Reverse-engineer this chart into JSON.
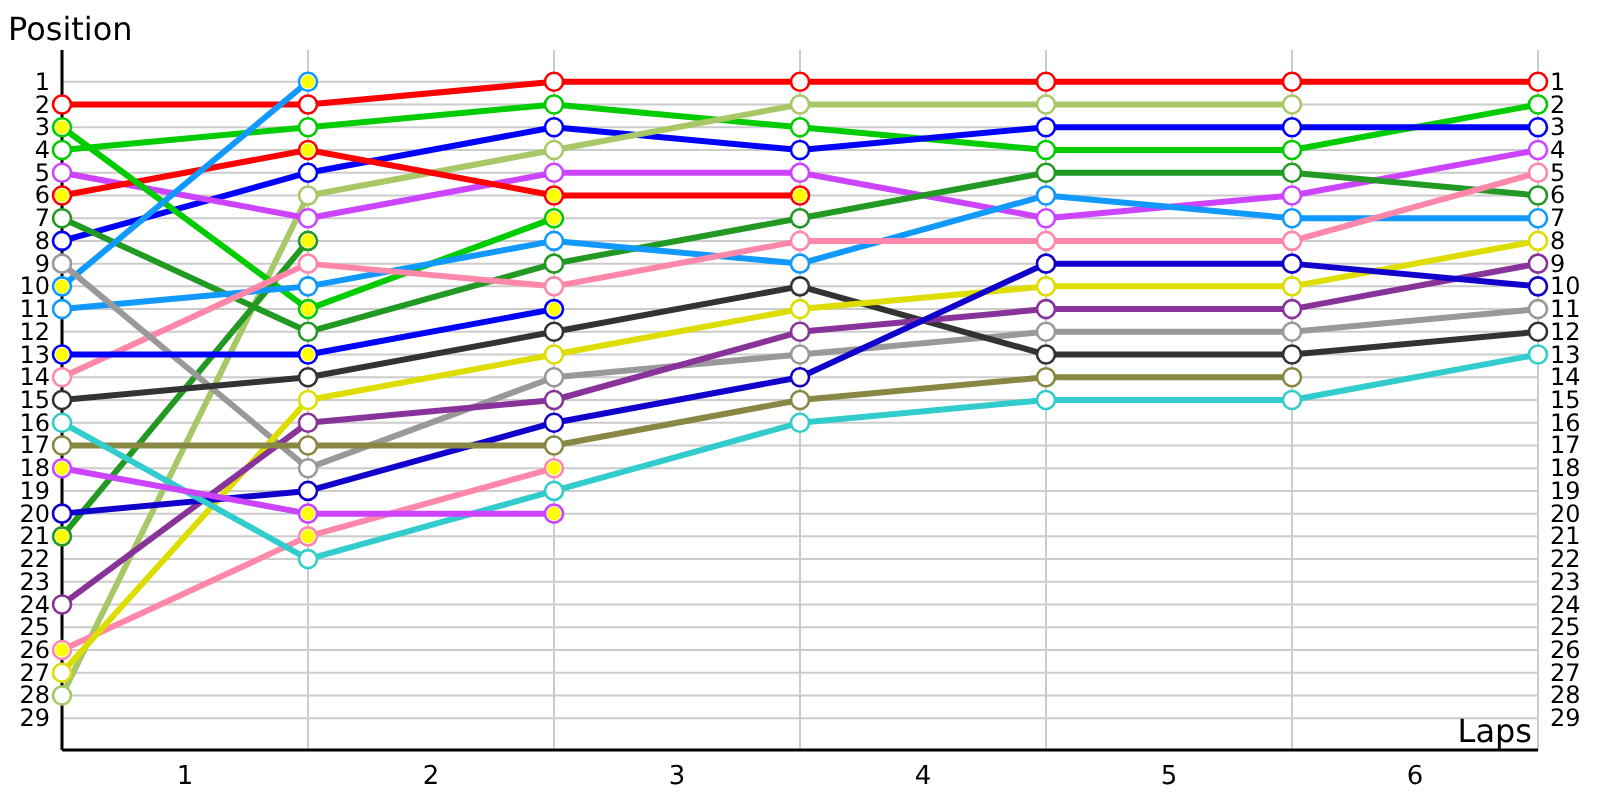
{
  "chart_data": {
    "type": "line",
    "xlabel": "Laps",
    "ylabel": "Position",
    "x": [
      0,
      1,
      2,
      3,
      4,
      5,
      6
    ],
    "xlim": [
      0,
      6
    ],
    "xticks": [
      {
        "value": 0,
        "label": null
      },
      {
        "value": 0.5,
        "label": "1"
      },
      {
        "value": 1,
        "label": null
      },
      {
        "value": 1.5,
        "label": "2"
      },
      {
        "value": 2,
        "label": null
      },
      {
        "value": 2.5,
        "label": "3"
      },
      {
        "value": 3,
        "label": null
      },
      {
        "value": 3.5,
        "label": "4"
      },
      {
        "value": 4,
        "label": null
      },
      {
        "value": 4.5,
        "label": "5"
      },
      {
        "value": 5,
        "label": null
      },
      {
        "value": 5.5,
        "label": "6"
      },
      {
        "value": 6,
        "label": null
      }
    ],
    "ylim": [
      30.4,
      -0.4
    ],
    "yticks": [
      1,
      2,
      3,
      4,
      5,
      6,
      7,
      8,
      9,
      10,
      11,
      12,
      13,
      14,
      15,
      16,
      17,
      18,
      19,
      20,
      21,
      22,
      23,
      24,
      25,
      26,
      27,
      28,
      29
    ],
    "y2lim": [
      30.4,
      -0.4
    ],
    "y2ticks": [
      1,
      2,
      3,
      4,
      5,
      6,
      7,
      8,
      9,
      10,
      11,
      12,
      13,
      14,
      15,
      16,
      17,
      18,
      19,
      20,
      21,
      22,
      23,
      24,
      25,
      26,
      27,
      28,
      29
    ],
    "grid": true,
    "marker": "circle",
    "line_style": "solid",
    "series": [
      {
        "color": "#ff0000",
        "values": [
          2,
          2,
          1,
          1,
          1,
          1,
          1
        ]
      },
      {
        "color": "#00cc00",
        "values": [
          4,
          3,
          2,
          3,
          4,
          4,
          2
        ]
      },
      {
        "color": "#0000ff",
        "values": [
          8,
          5,
          3,
          4,
          3,
          3,
          3
        ]
      },
      {
        "color": "#a8c868",
        "values": [
          28,
          6,
          4,
          2,
          2,
          2,
          null
        ]
      },
      {
        "color": "#cc44ff",
        "values": [
          5,
          7,
          5,
          5,
          7,
          6,
          4
        ]
      },
      {
        "color": "#ff0000",
        "values": [
          6,
          4,
          6,
          6,
          null,
          null,
          null
        ]
      },
      {
        "color": "#00cc00",
        "values": [
          3,
          11,
          7,
          null,
          null,
          null,
          null
        ]
      },
      {
        "color": "#229922",
        "values": [
          7,
          12,
          9,
          7,
          5,
          5,
          6
        ]
      },
      {
        "color": "#229922",
        "values": [
          21,
          8,
          null,
          null,
          null,
          null,
          null
        ]
      },
      {
        "color": "#1199ff",
        "values": [
          10,
          1,
          null,
          null,
          null,
          null,
          null
        ]
      },
      {
        "color": "#1199ff",
        "values": [
          11,
          10,
          8,
          9,
          6,
          7,
          7
        ]
      },
      {
        "color": "#ff88aa",
        "values": [
          14,
          9,
          10,
          8,
          8,
          8,
          5
        ]
      },
      {
        "color": "#ff88aa",
        "values": [
          26,
          21,
          18,
          null,
          null,
          null,
          null
        ]
      },
      {
        "color": "#999999",
        "values": [
          9,
          18,
          14,
          13,
          12,
          12,
          11
        ]
      },
      {
        "color": "#0000ff",
        "values": [
          13,
          13,
          11,
          null,
          null,
          null,
          null
        ]
      },
      {
        "color": "#333333",
        "values": [
          15,
          14,
          12,
          10,
          13,
          13,
          12
        ]
      },
      {
        "color": "#dddd00",
        "values": [
          27,
          15,
          13,
          11,
          10,
          10,
          8
        ]
      },
      {
        "color": "#883399",
        "values": [
          24,
          16,
          15,
          12,
          11,
          11,
          9
        ]
      },
      {
        "color": "#1100cc",
        "values": [
          20,
          19,
          16,
          14,
          9,
          9,
          10
        ]
      },
      {
        "color": "#888844",
        "values": [
          17,
          17,
          17,
          15,
          14,
          14,
          null
        ]
      },
      {
        "color": "#33cccc",
        "values": [
          16,
          22,
          19,
          16,
          15,
          15,
          13
        ]
      },
      {
        "color": "#cc44ff",
        "values": [
          18,
          20,
          20,
          null,
          null,
          null,
          null
        ]
      },
      {
        "type": "scatter",
        "color": "#ffff00",
        "x": [
          0,
          1,
          2,
          3,
          0,
          1,
          2,
          0,
          1,
          0,
          1,
          0,
          1,
          2,
          0,
          1,
          2,
          0,
          1,
          2
        ],
        "values": [
          6,
          4,
          6,
          6,
          3,
          11,
          7,
          21,
          8,
          10,
          1,
          26,
          21,
          18,
          13,
          13,
          11,
          18,
          20,
          20
        ]
      }
    ]
  }
}
